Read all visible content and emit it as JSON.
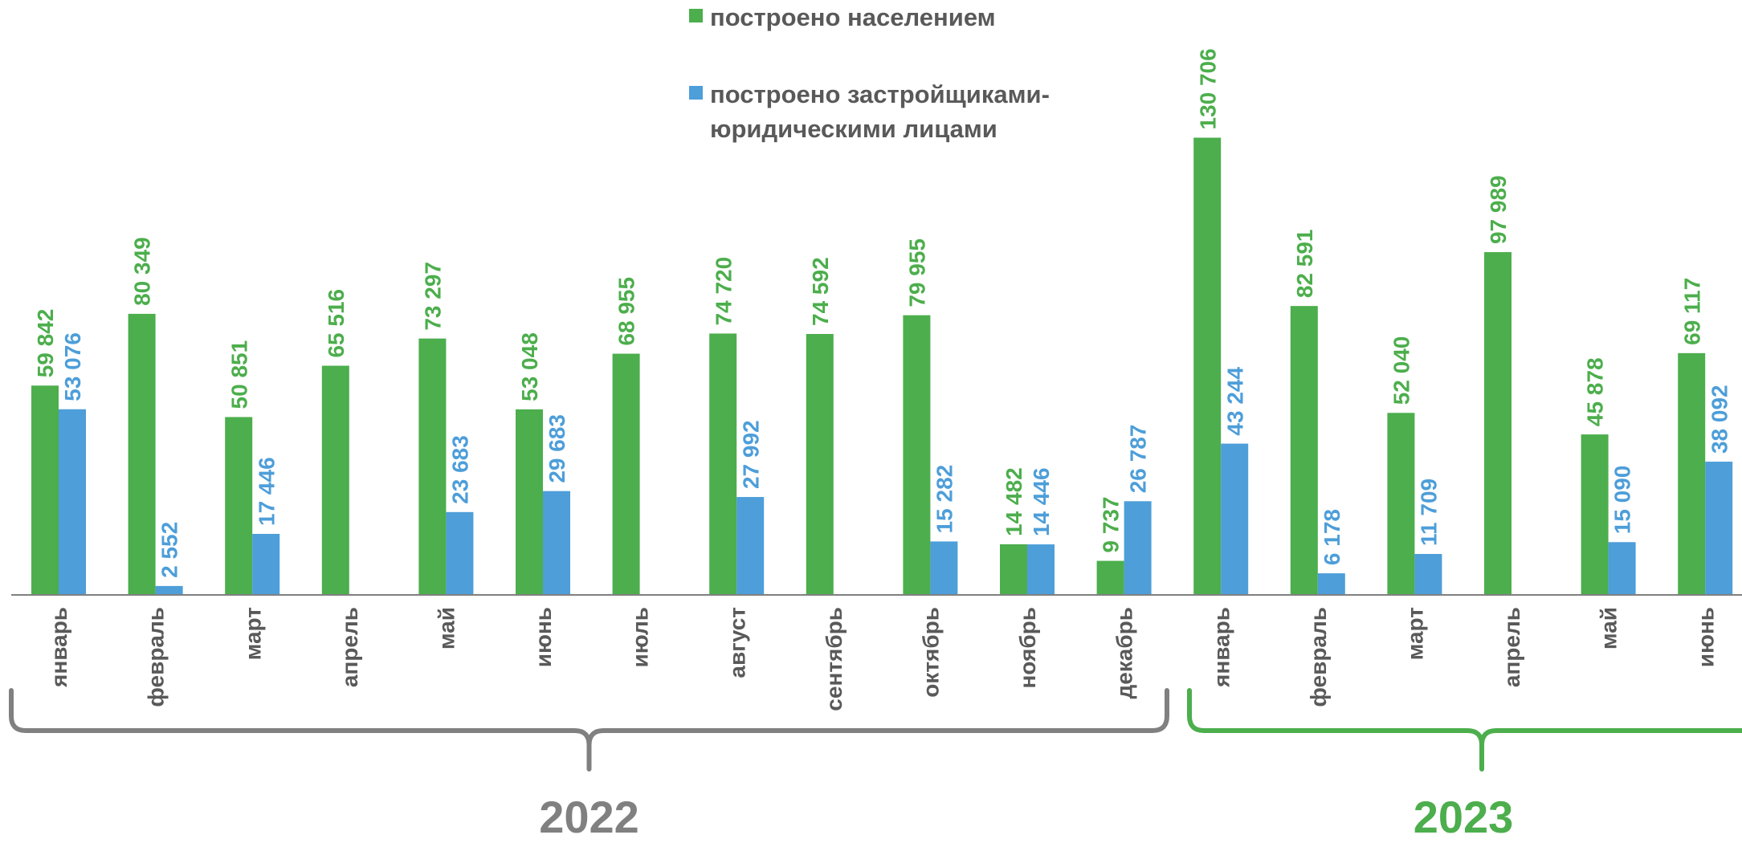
{
  "legend": {
    "population": "построено населением",
    "developers": "построено застройщиками-юридическими лицами"
  },
  "colors": {
    "population": "#4cae4c",
    "developers": "#4d9ed9",
    "year_2022": "#808080",
    "year_2023": "#4cae4c",
    "axis": "#808080",
    "month_label": "#595959"
  },
  "years": [
    {
      "label": "2022",
      "months": 12
    },
    {
      "label": "2023",
      "months": 6
    }
  ],
  "chart_data": {
    "type": "bar",
    "categories": [
      "январь",
      "февраль",
      "март",
      "апрель",
      "май",
      "июнь",
      "июль",
      "август",
      "сентябрь",
      "октябрь",
      "ноябрь",
      "декабрь",
      "январь",
      "февраль",
      "март",
      "апрель",
      "май",
      "июнь"
    ],
    "series": [
      {
        "name": "построено населением",
        "key": "population",
        "values": [
          59842,
          80349,
          50851,
          65516,
          73297,
          53048,
          68955,
          74720,
          74592,
          79955,
          14482,
          9737,
          130706,
          82591,
          52040,
          97989,
          45878,
          69117
        ],
        "labels": [
          "59 842",
          "80 349",
          "50 851",
          "65 516",
          "73 297",
          "53 048",
          "68 955",
          "74 720",
          "74 592",
          "79 955",
          "14 482",
          "9 737",
          "130 706",
          "82 591",
          "52 040",
          "97 989",
          "45 878",
          "69 117"
        ]
      },
      {
        "name": "построено застройщиками-юридическими лицами",
        "key": "developers",
        "values": [
          53076,
          2552,
          17446,
          null,
          23683,
          29683,
          null,
          27992,
          null,
          15282,
          14446,
          26787,
          43244,
          6178,
          11709,
          null,
          15090,
          38092
        ],
        "labels": [
          "53 076",
          "2 552",
          "17 446",
          null,
          "23 683",
          "29 683",
          null,
          "27 992",
          null,
          "15 282",
          "14 446",
          "26 787",
          "43 244",
          "6 178",
          "11 709",
          null,
          "15 090",
          "38 092"
        ]
      }
    ],
    "ylim": [
      0,
      140000
    ],
    "grid": false,
    "legend_position": "top-center"
  }
}
